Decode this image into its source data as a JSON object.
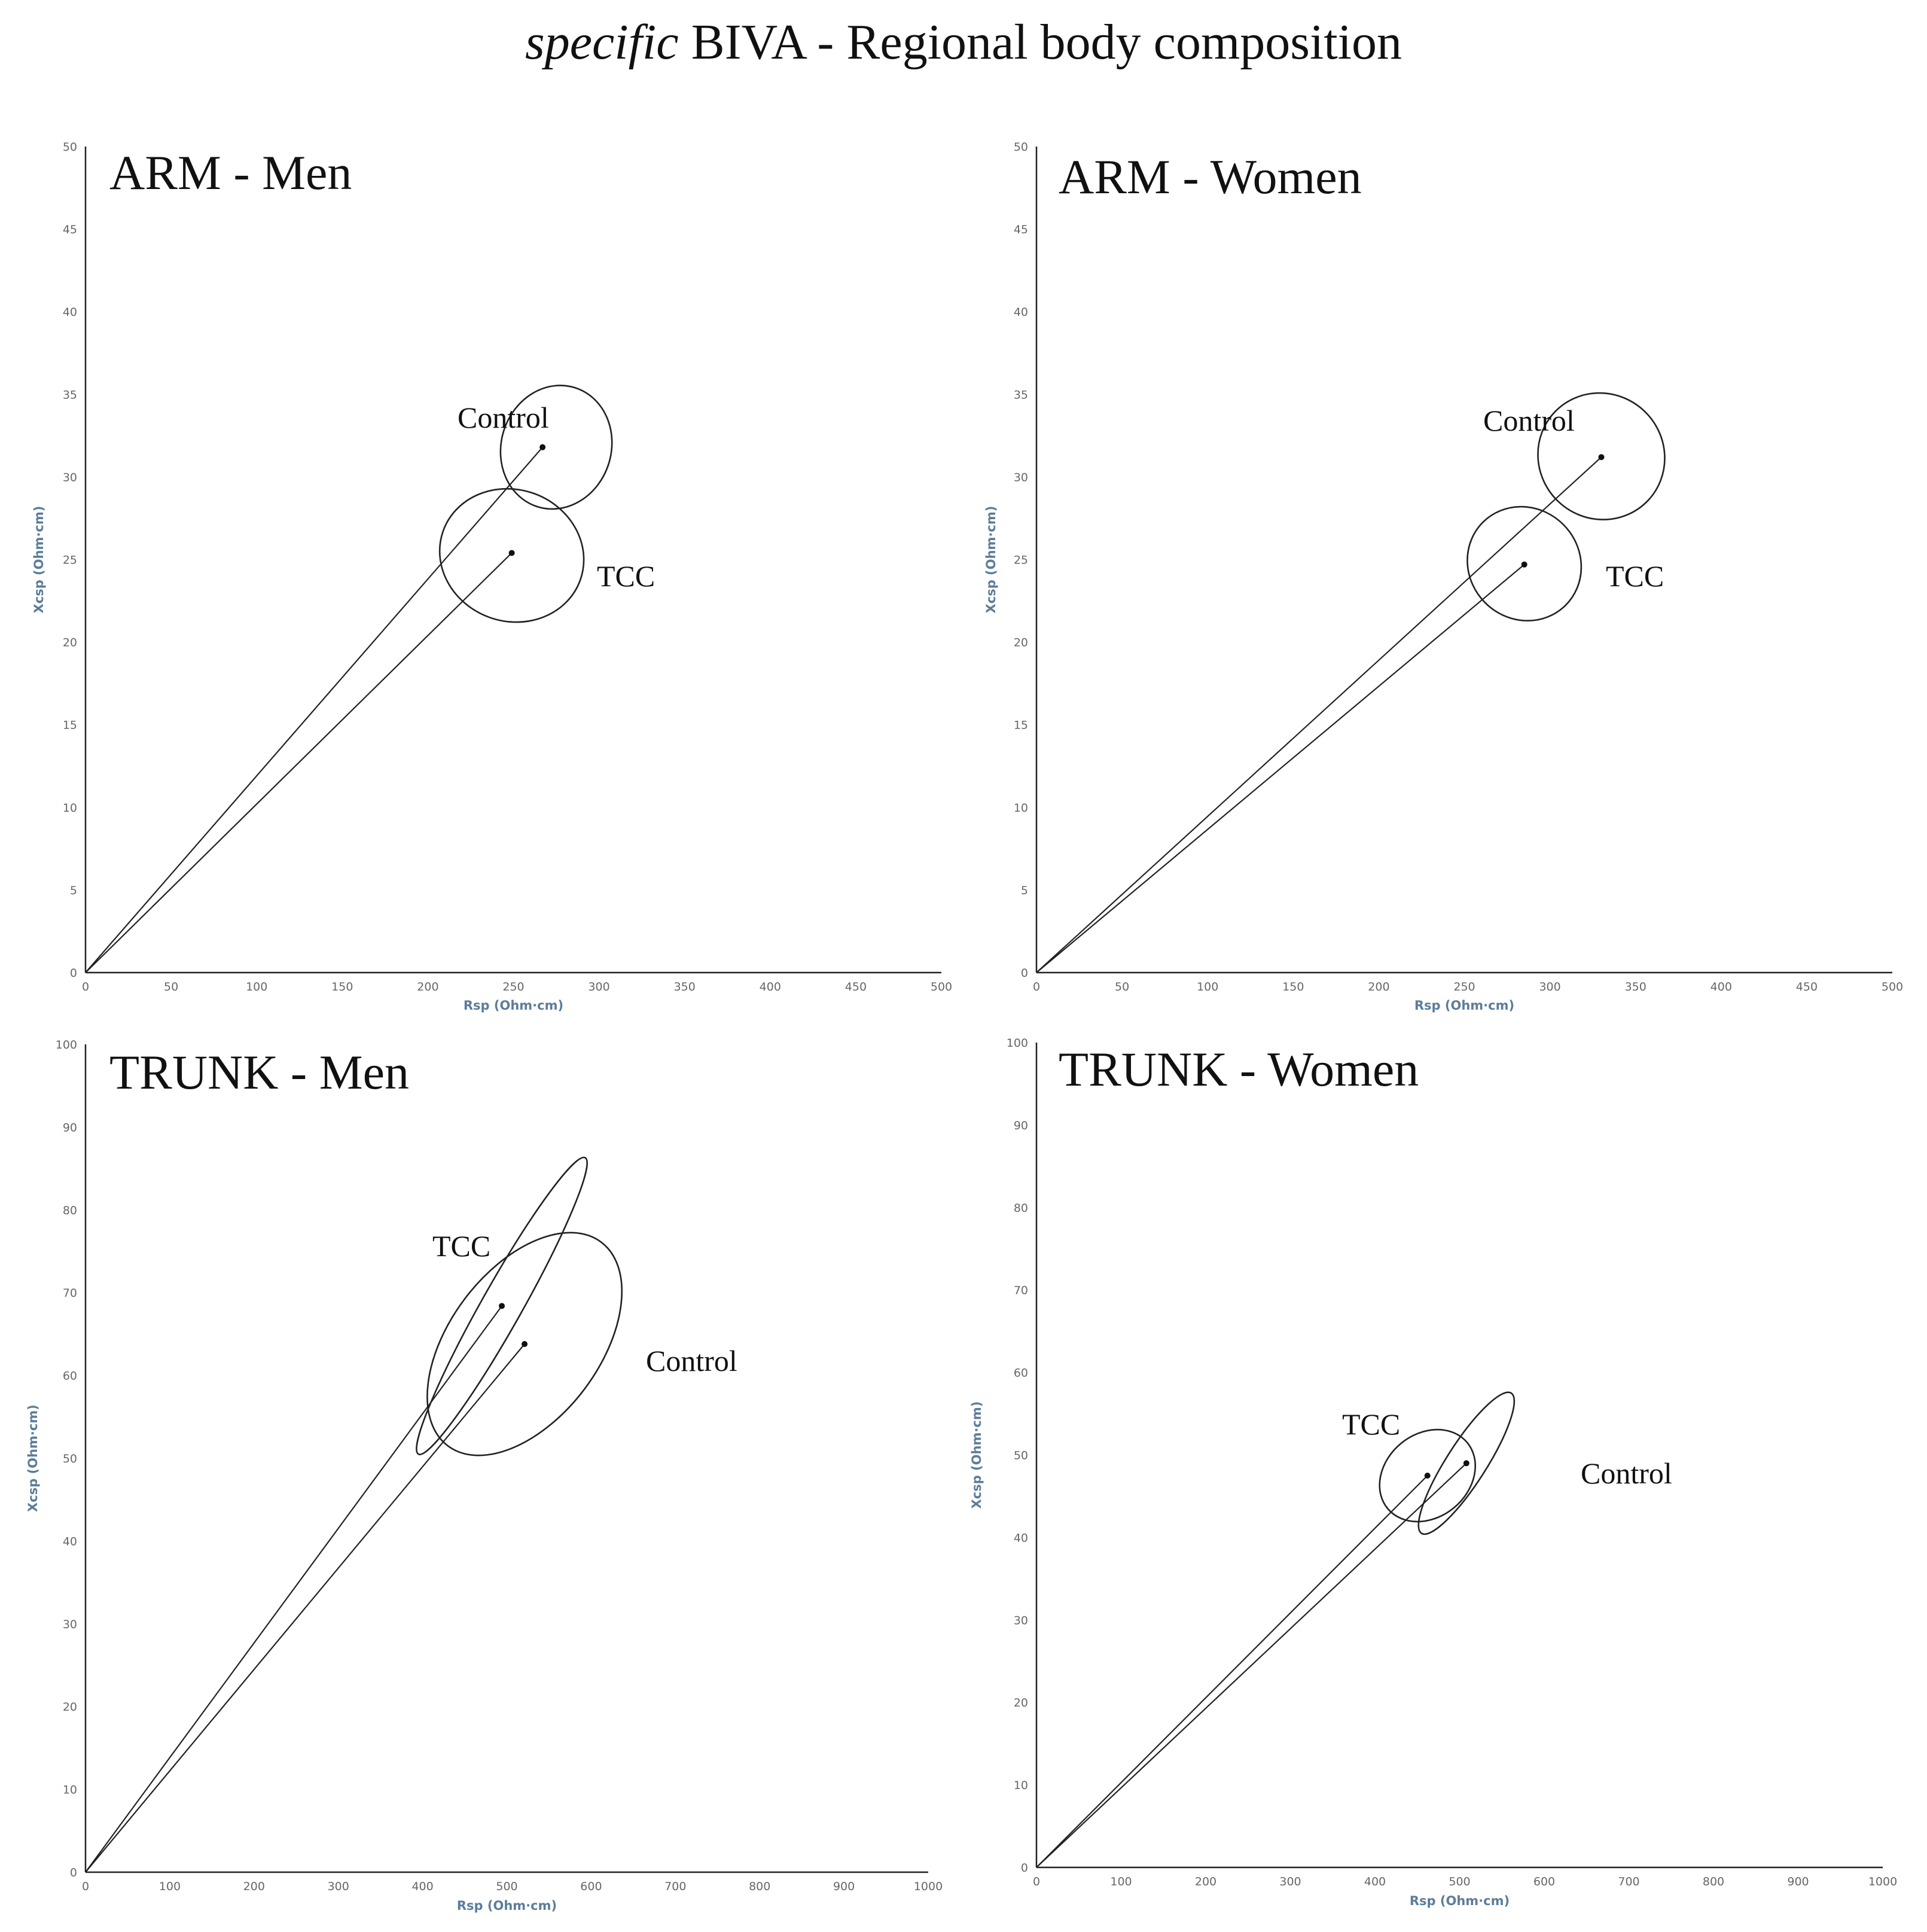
{
  "figure": {
    "title_italic": "specific",
    "title_rest": " BIVA - Regional body composition"
  },
  "chart_data": [
    {
      "type": "scatter",
      "title": "ARM - Men",
      "xlabel": "Rsp (Ohm·cm)",
      "ylabel": "Xcsp (Ohm·cm)",
      "xlim": [
        0,
        500
      ],
      "ylim": [
        0,
        50
      ],
      "xticks": [
        0,
        50,
        100,
        150,
        200,
        250,
        300,
        350,
        400,
        450,
        500
      ],
      "yticks": [
        0,
        5,
        10,
        15,
        20,
        25,
        30,
        35,
        40,
        45,
        50
      ],
      "grid": false,
      "series": [
        {
          "name": "Control",
          "mean": [
            267,
            31.8
          ],
          "ellipse": [
            [
              264,
              28.2
            ],
            [
              286,
              35.4
            ],
            [
              257,
              28.6
            ],
            [
              271,
              35.1
            ]
          ]
        },
        {
          "name": "TCC",
          "mean": [
            249,
            25.4
          ],
          "ellipse": [
            [
              236,
              21.5
            ],
            [
              262,
              29.0
            ],
            [
              247,
              20.5
            ],
            [
              252,
              29.3
            ]
          ]
        }
      ]
    },
    {
      "type": "scatter",
      "title": "ARM - Women",
      "xlabel": "Rsp (Ohm·cm)",
      "ylabel": "Xcsp (Ohm·cm)",
      "xlim": [
        0,
        500
      ],
      "ylim": [
        0,
        50
      ],
      "xticks": [
        0,
        50,
        100,
        150,
        200,
        250,
        300,
        350,
        400,
        450,
        500
      ],
      "yticks": [
        0,
        5,
        10,
        15,
        20,
        25,
        30,
        35,
        40,
        45,
        50
      ],
      "grid": false,
      "series": [
        {
          "name": "Control",
          "mean": [
            330,
            31.2
          ],
          "ellipse": [
            [
              305,
              28.5
            ],
            [
              355,
              34.0
            ],
            [
              320,
              27.5
            ],
            [
              340,
              35.0
            ]
          ]
        },
        {
          "name": "TCC",
          "mean": [
            285,
            24.7
          ],
          "ellipse": [
            [
              262,
              22.4
            ],
            [
              308,
              27.1
            ],
            [
              266,
              21.7
            ],
            [
              304,
              27.6
            ]
          ]
        }
      ]
    },
    {
      "type": "scatter",
      "title": "TRUNK - Men",
      "xlabel": "Rsp (Ohm·cm)",
      "ylabel": "Xcsp (Ohm·cm)",
      "xlim": [
        0,
        1000
      ],
      "ylim": [
        0,
        100
      ],
      "xticks": [
        0,
        100,
        200,
        300,
        400,
        500,
        600,
        700,
        800,
        900,
        1000
      ],
      "yticks": [
        0,
        10,
        20,
        30,
        40,
        50,
        60,
        70,
        80,
        90,
        100
      ],
      "grid": false,
      "series": [
        {
          "name": "TCC",
          "mean": [
            494,
            68.4
          ],
          "ellipse": [
            [
              395,
              50.5
            ],
            [
              593,
              86.3
            ],
            [
              470,
              68.5
            ],
            [
              518,
              68.3
            ]
          ]
        },
        {
          "name": "Control",
          "mean": [
            521,
            63.8
          ],
          "ellipse": [
            [
              430,
              51.5
            ],
            [
              612,
              76.1
            ],
            [
              500,
              55.0
            ],
            [
              542,
              72.6
            ]
          ]
        }
      ]
    },
    {
      "type": "scatter",
      "title": "TRUNK - Women",
      "xlabel": "Rsp (Ohm·cm)",
      "ylabel": "Xcsp (Ohm·cm)",
      "xlim": [
        0,
        1000
      ],
      "ylim": [
        0,
        100
      ],
      "xticks": [
        0,
        100,
        200,
        300,
        400,
        500,
        600,
        700,
        800,
        900,
        1000
      ],
      "yticks": [
        0,
        10,
        20,
        30,
        40,
        50,
        60,
        70,
        80,
        90,
        100
      ],
      "grid": false,
      "series": [
        {
          "name": "TCC",
          "mean": [
            462,
            47.5
          ],
          "ellipse": [
            [
              415,
              43.5
            ],
            [
              509,
              51.5
            ],
            [
              455,
              42.5
            ],
            [
              469,
              52.5
            ]
          ]
        },
        {
          "name": "Control",
          "mean": [
            508,
            49.0
          ],
          "ellipse": [
            [
              455,
              40.5
            ],
            [
              561,
              57.5
            ],
            [
              495,
              47.0
            ],
            [
              521,
              51.0
            ]
          ]
        }
      ]
    }
  ]
}
